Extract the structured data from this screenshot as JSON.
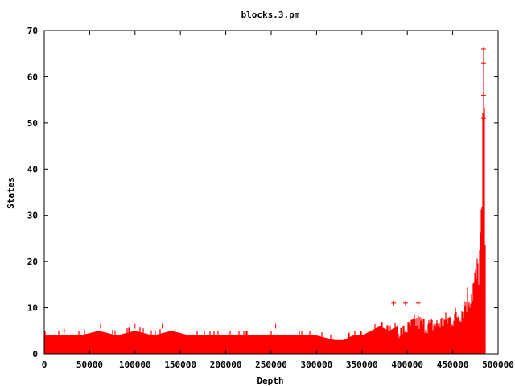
{
  "chart_data": {
    "type": "line",
    "title": "blocks.3.pm",
    "xlabel": "Depth",
    "ylabel": "States",
    "xlim": [
      0,
      500000
    ],
    "ylim": [
      0,
      70
    ],
    "xticks": [
      0,
      50000,
      100000,
      150000,
      200000,
      250000,
      300000,
      350000,
      400000,
      450000,
      500000
    ],
    "yticks": [
      0,
      10,
      20,
      30,
      40,
      50,
      60,
      70
    ],
    "grid": false,
    "legend": "none",
    "series_color": "#ff0000",
    "style": "impulses with cross markers",
    "series": [
      {
        "x": [
          0,
          20000,
          40000,
          60000,
          80000,
          100000,
          120000,
          140000,
          160000,
          180000,
          200000,
          220000,
          240000,
          260000,
          280000,
          300000,
          320000,
          330000,
          340000,
          350000,
          360000,
          370000,
          380000,
          390000,
          400000,
          410000,
          420000,
          430000,
          440000,
          450000,
          460000,
          465000,
          470000,
          475000,
          478000,
          480000,
          482000,
          484000,
          486000
        ],
        "y": [
          4,
          4,
          4,
          5,
          4,
          5,
          4,
          5,
          4,
          4,
          4,
          4,
          4,
          4,
          4,
          4,
          3,
          3,
          4,
          4,
          5,
          6,
          5,
          6,
          7,
          9,
          8,
          8,
          9,
          10,
          12,
          15,
          17,
          20,
          23,
          28,
          35,
          66,
          39
        ]
      }
    ],
    "peak_markers": {
      "x": [
        22000,
        62000,
        100000,
        130000,
        255000,
        385000,
        398000,
        412000,
        484000,
        484000,
        484000,
        484000
      ],
      "y": [
        5,
        6,
        6,
        6,
        6,
        11,
        11,
        11,
        66,
        63,
        56,
        51
      ]
    }
  }
}
